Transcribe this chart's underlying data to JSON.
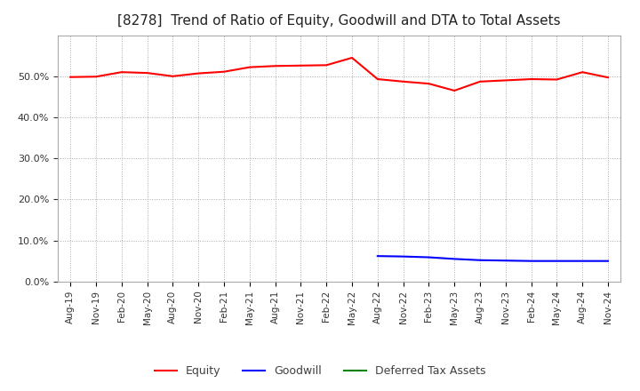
{
  "title": "[8278]  Trend of Ratio of Equity, Goodwill and DTA to Total Assets",
  "title_fontsize": 11,
  "background_color": "#ffffff",
  "plot_bg_color": "#ffffff",
  "grid_color": "#aaaaaa",
  "x_labels": [
    "Aug-19",
    "Nov-19",
    "Feb-20",
    "May-20",
    "Aug-20",
    "Nov-20",
    "Feb-21",
    "May-21",
    "Aug-21",
    "Nov-21",
    "Feb-22",
    "May-22",
    "Aug-22",
    "Nov-22",
    "Feb-23",
    "May-23",
    "Aug-23",
    "Nov-23",
    "Feb-24",
    "May-24",
    "Aug-24",
    "Nov-24"
  ],
  "equity": [
    49.8,
    49.9,
    51.0,
    50.8,
    50.0,
    50.7,
    51.1,
    52.2,
    52.5,
    52.6,
    52.7,
    54.5,
    49.3,
    48.7,
    48.2,
    46.5,
    48.7,
    49.0,
    49.3,
    49.2,
    51.0,
    49.7
  ],
  "goodwill": [
    null,
    null,
    null,
    null,
    null,
    null,
    null,
    null,
    null,
    null,
    null,
    null,
    6.2,
    6.1,
    5.9,
    5.5,
    5.2,
    5.1,
    5.0,
    5.0,
    5.0,
    5.0
  ],
  "dta": [
    null,
    null,
    null,
    null,
    null,
    null,
    null,
    null,
    null,
    null,
    null,
    null,
    null,
    null,
    null,
    null,
    null,
    null,
    null,
    null,
    null,
    null
  ],
  "equity_color": "#ff0000",
  "goodwill_color": "#0000ff",
  "dta_color": "#008000",
  "ylim": [
    0,
    60
  ],
  "yticks": [
    0,
    10,
    20,
    30,
    40,
    50
  ],
  "legend_labels": [
    "Equity",
    "Goodwill",
    "Deferred Tax Assets"
  ],
  "legend_text_color": "#404040"
}
